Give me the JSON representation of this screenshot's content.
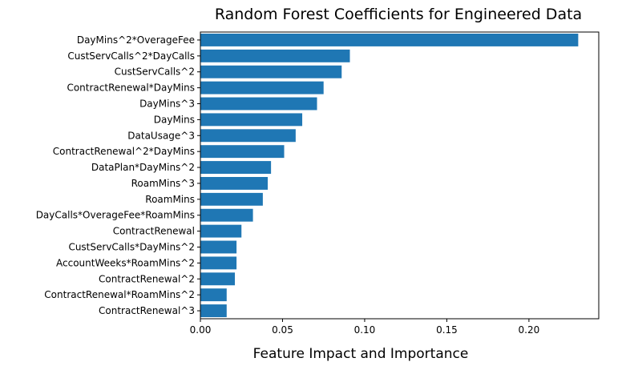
{
  "chart_data": {
    "type": "bar",
    "orientation": "horizontal",
    "title": "Random Forest Coefficients for Engineered Data",
    "xlabel": "Feature Impact and Importance",
    "ylabel": "",
    "xlim": [
      0,
      0.2425
    ],
    "xticks": [
      0.0,
      0.05,
      0.1,
      0.15,
      0.2
    ],
    "xtick_labels": [
      "0.00",
      "0.05",
      "0.10",
      "0.15",
      "0.20"
    ],
    "grid": false,
    "legend": false,
    "bar_color": "#1f77b4",
    "categories": [
      "DayMins^2*OverageFee",
      "CustServCalls^2*DayCalls",
      "CustServCalls^2",
      "ContractRenewal*DayMins",
      "DayMins^3",
      "DayMins",
      "DataUsage^3",
      "ContractRenewal^2*DayMins",
      "DataPlan*DayMins^2",
      "RoamMins^3",
      "RoamMins",
      "DayCalls*OverageFee*RoamMins",
      "ContractRenewal",
      "CustServCalls*DayMins^2",
      "AccountWeeks*RoamMins^2",
      "ContractRenewal^2",
      "ContractRenewal*RoamMins^2",
      "ContractRenewal^3"
    ],
    "values": [
      0.23,
      0.091,
      0.086,
      0.075,
      0.071,
      0.062,
      0.058,
      0.051,
      0.043,
      0.041,
      0.038,
      0.032,
      0.025,
      0.022,
      0.022,
      0.021,
      0.016,
      0.016
    ]
  }
}
